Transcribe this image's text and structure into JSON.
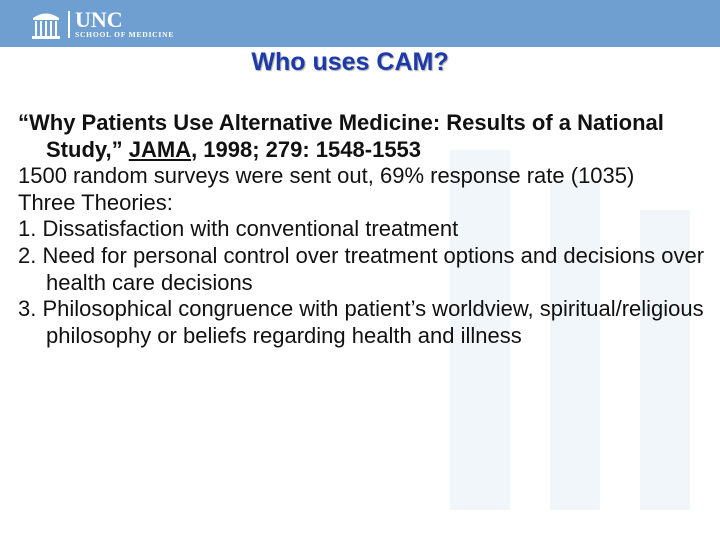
{
  "header": {
    "logo_name": "UNC",
    "logo_subtitle": "SCHOOL OF MEDICINE",
    "logo_icon": "old-well-icon",
    "bar_color": "#6f9fd1"
  },
  "slide": {
    "title": "Who uses CAM?",
    "title_color": "#1c3aa9",
    "citation": {
      "part1": "“Why Patients Use Alternative Medicine: Results of a National Study,” ",
      "journal": "JAMA",
      "part2": ", 1998; 279: 1548-1553"
    },
    "survey_line": "1500 random surveys were sent out, 69% response rate (1035)",
    "theories_heading": "Three Theories:",
    "theories": [
      "1. Dissatisfaction with conventional treatment",
      "2. Need for personal control over treatment options and decisions over health care decisions",
      "3. Philosophical congruence with patient’s worldview, spiritual/religious philosophy or beliefs regarding health and illness"
    ]
  }
}
